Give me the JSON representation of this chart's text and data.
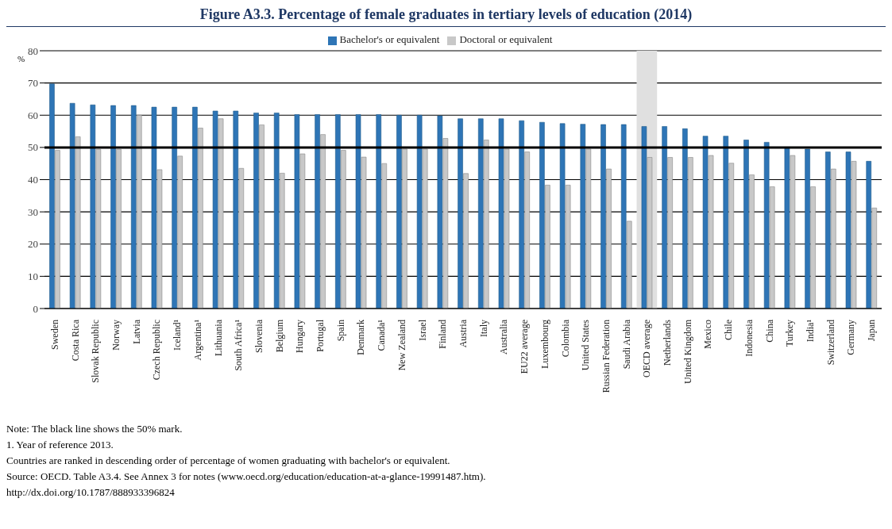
{
  "chart_data": {
    "type": "bar",
    "title": "Figure A3.3.  Percentage of female graduates in tertiary levels of education (2014)",
    "ylabel": "%",
    "categories": [
      "Sweden",
      "Costa Rica",
      "Slovak Republic",
      "Norway",
      "Latvia",
      "Czech Republic",
      "Iceland¹",
      "Argentina¹",
      "Lithuania",
      "South Africa¹",
      "Slovenia",
      "Belgium",
      "Hungary",
      "Portugal",
      "Spain",
      "Denmark",
      "Canada¹",
      "New Zealand",
      "Israel",
      "Finland",
      "Austria",
      "Italy",
      "Australia",
      "EU22 average",
      "Luxembourg",
      "Colombia",
      "United States",
      "Russian Federation",
      "Saudi Arabia",
      "OECD average",
      "Netherlands",
      "United Kingdom",
      "Mexico",
      "Chile",
      "Indonesia",
      "China",
      "Turkey",
      "India¹",
      "Switzerland",
      "Germany",
      "Japan"
    ],
    "series": [
      {
        "name": "Bachelor's or equivalent",
        "color": "#2e75b6",
        "values": [
          69.7,
          63.7,
          63.2,
          63,
          63,
          62.5,
          62.5,
          62.5,
          61.3,
          61.3,
          60.7,
          60.7,
          60.2,
          60.2,
          60.2,
          60.2,
          60.2,
          60,
          60,
          59.8,
          58.9,
          58.9,
          58.9,
          58.3,
          57.8,
          57.4,
          57.2,
          57.1,
          57.1,
          56.5,
          56.5,
          55.8,
          53.5,
          53.5,
          52.3,
          51.6,
          49.8,
          49.5,
          48.6,
          48.6,
          45.7
        ]
      },
      {
        "name": "Doctoral or equivalent",
        "color": "#c8c8c8",
        "values": [
          49.1,
          53.3,
          49.4,
          49.4,
          60,
          43.1,
          47.3,
          56,
          58.9,
          43.5,
          57,
          42,
          48,
          54,
          49.1,
          47,
          45,
          49.5,
          49.5,
          52.8,
          41.9,
          52.3,
          49.5,
          48.6,
          38.3,
          38.3,
          49.5,
          43.3,
          27.1,
          46.9,
          46.9,
          46.9,
          47.5,
          45.1,
          41.5,
          37.8,
          47.5,
          37.8,
          43.3,
          45.7,
          31.2
        ]
      }
    ],
    "ylim": [
      0,
      80
    ],
    "yticks": [
      0,
      10,
      20,
      30,
      40,
      50,
      60,
      70,
      80
    ],
    "grid": "y",
    "legend": "top",
    "ref_lines": [
      {
        "axis": "y",
        "value": 50,
        "color": "#000000"
      }
    ],
    "bands": [
      {
        "axis": "x",
        "from": "OECD average",
        "to": "OECD average",
        "color": "#e0e0e0"
      }
    ],
    "annotations": [
      "Note: The black line shows the 50% mark.",
      "1. Year of reference 2013.",
      "Countries are ranked in descending order of percentage of women graduating with bachelor's or equivalent.",
      "Source: OECD. Table A3.4. See Annex 3 for notes (www.oecd.org/education/education-at-a-glance-19991487.htm).",
      "http://dx.doi.org/10.1787/888933396824"
    ]
  }
}
